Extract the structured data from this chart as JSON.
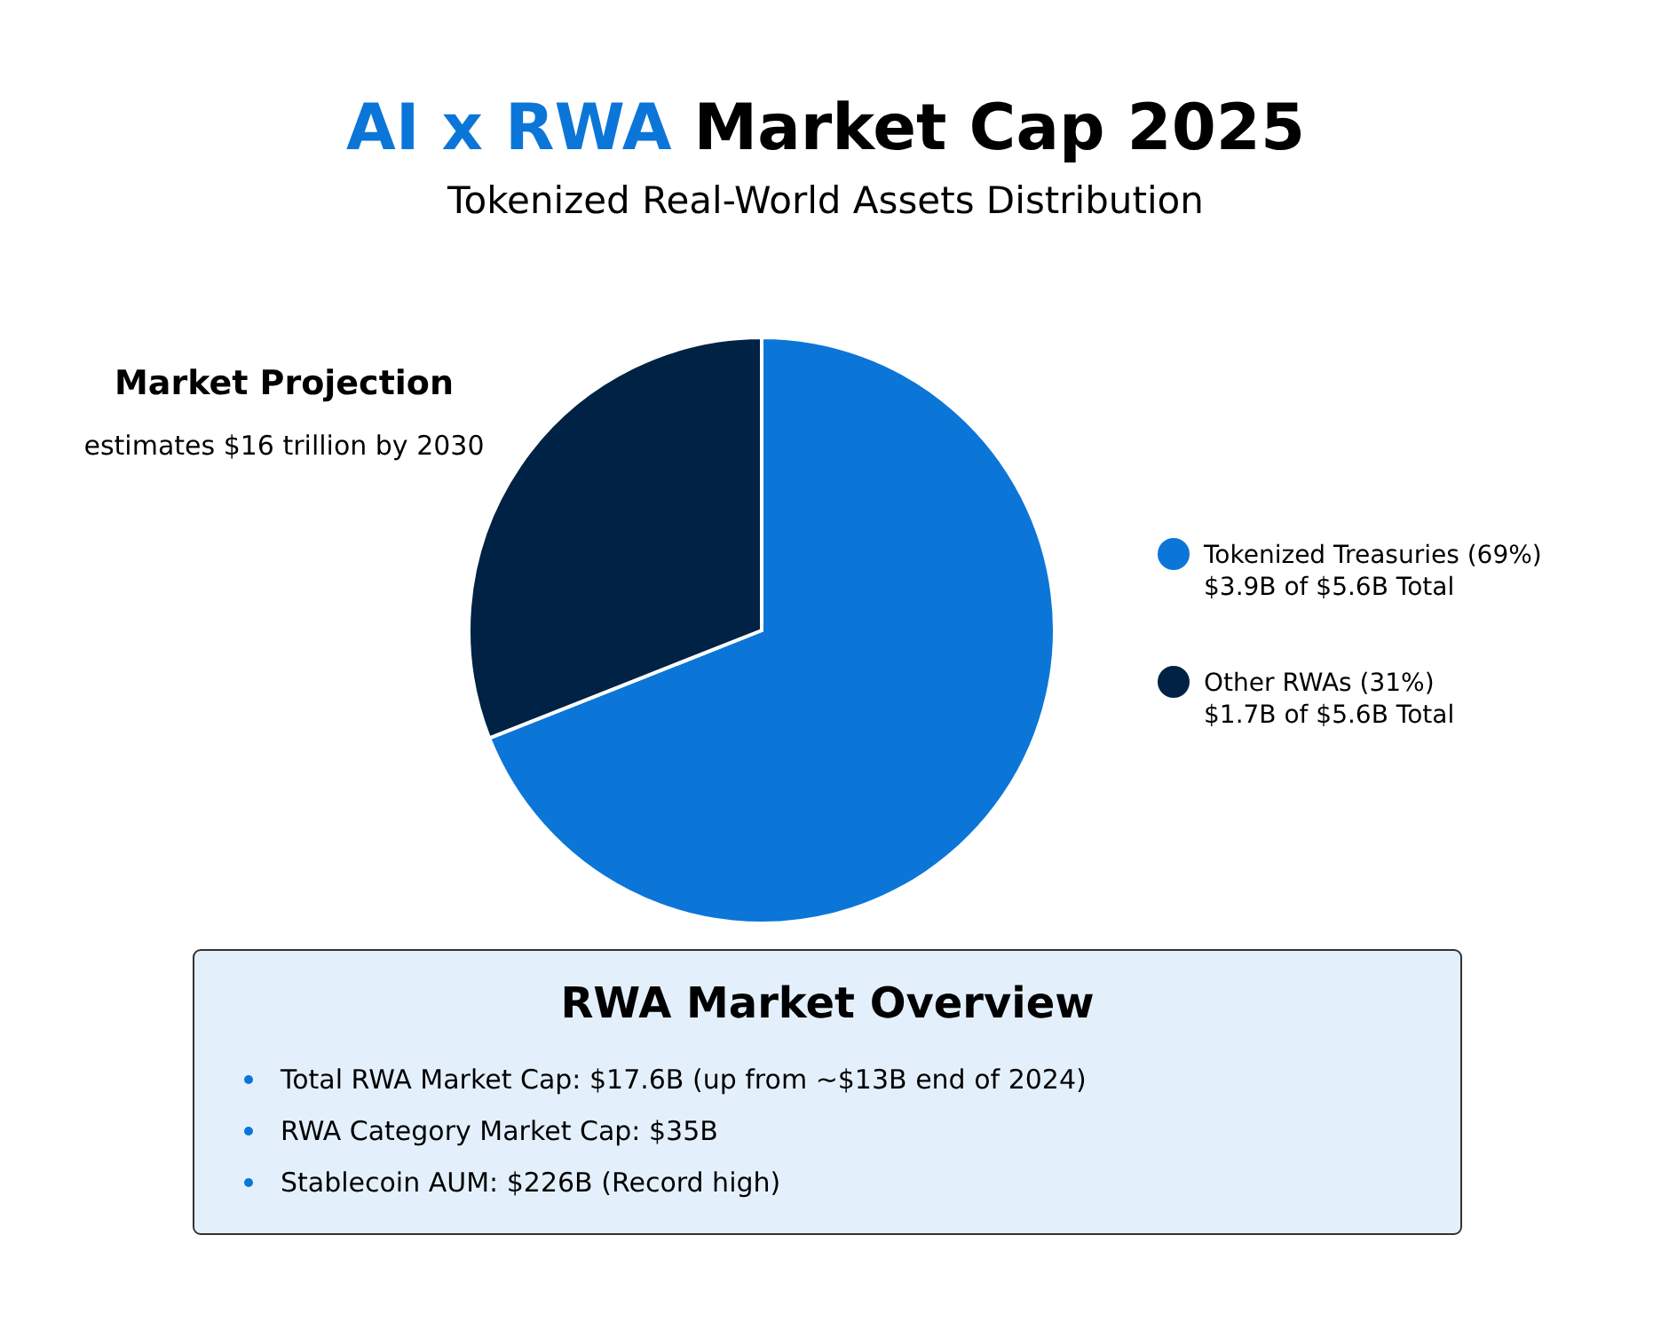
{
  "chart_data": [
    {
      "type": "pie",
      "title": "AI x RWA Market Cap 2025",
      "subtitle": "Tokenized Real-World Assets Distribution",
      "categories": [
        "Tokenized Treasuries",
        "Other RWAs"
      ],
      "values": [
        69,
        31
      ],
      "colors": [
        "#0b76d8",
        "#002244"
      ],
      "value_labels": [
        "(69%)",
        "(31%)"
      ],
      "legend": "right",
      "annotations": [
        "$3.9B of $5.6B Total",
        "$1.7B of $5.6B Total",
        "Market Projection",
        "estimates $16 trillion by 2030"
      ]
    },
    {
      "type": "other",
      "title": "RWA Market Overview",
      "annotations": [
        "Total RWA Market Cap: $17.6B (up from ~$13B end of 2024)",
        "RWA Category Market Cap: $35B",
        "Stablecoin AUM: $226B (Record high)"
      ]
    }
  ]
}
